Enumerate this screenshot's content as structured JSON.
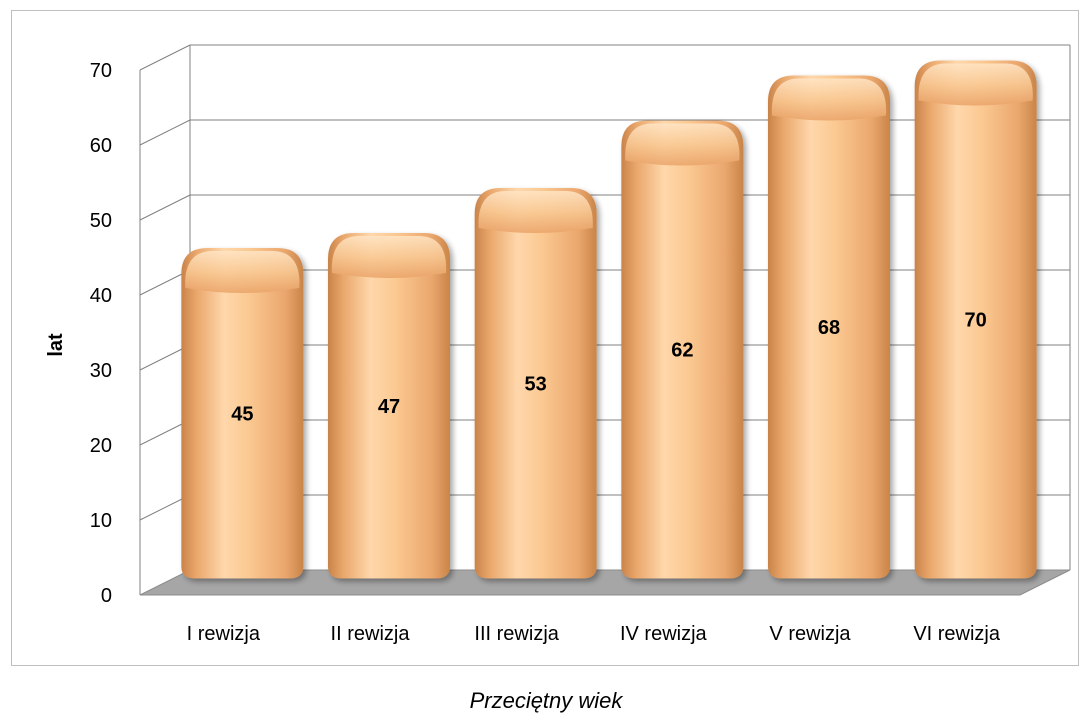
{
  "caption": "Przeciętny wiek",
  "colors": {
    "bar_fill": "#f5c089",
    "bar_highlight": "#ffdcb4",
    "bar_shadow": "#c9834a",
    "floor": "#a6a6a6",
    "grid": "#808080",
    "frame": "#bfbfbf"
  },
  "chart_data": {
    "type": "bar",
    "style": "3d-cylinder",
    "categories": [
      "I rewizja",
      "II rewizja",
      "III rewizja",
      "IV rewizja",
      "V rewizja",
      "VI rewizja"
    ],
    "values": [
      45,
      47,
      53,
      62,
      68,
      70
    ],
    "data_labels": [
      "45",
      "47",
      "53",
      "62",
      "68",
      "70"
    ],
    "ylabel": "lat",
    "xlabel": "",
    "ylim": [
      0,
      70
    ],
    "yticks": [
      "0",
      "10",
      "20",
      "30",
      "40",
      "50",
      "60",
      "70"
    ],
    "grid": true,
    "legend": "none"
  }
}
